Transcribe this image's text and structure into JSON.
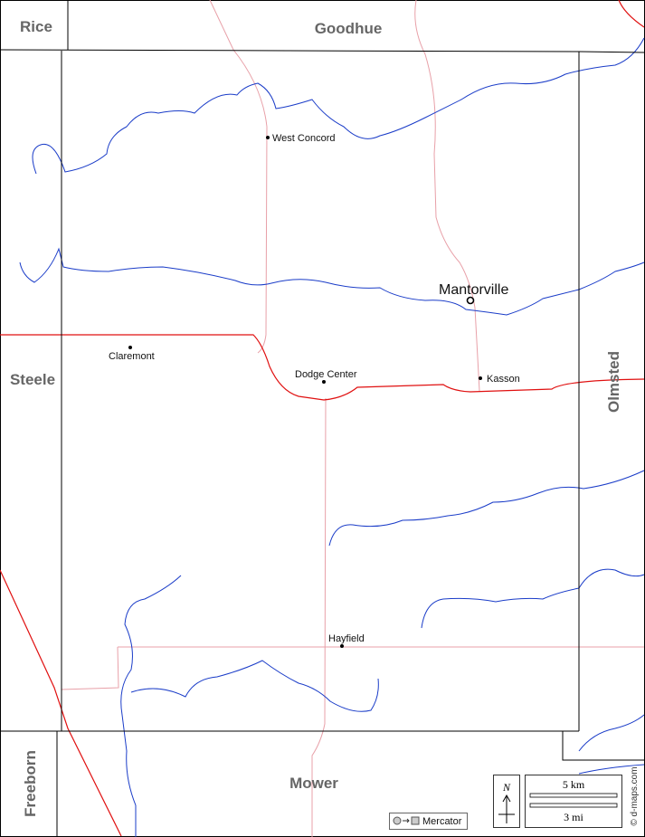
{
  "neighbors": {
    "north_west": "Rice",
    "north": "Goodhue",
    "west": "Steele",
    "east": "Olmsted",
    "south_west": "Freeborn",
    "south": "Mower"
  },
  "seat": "Mantorville",
  "towns": [
    "West Concord",
    "Claremont",
    "Dodge Center",
    "Kasson",
    "Hayfield"
  ],
  "legend": {
    "north": "N",
    "scale_km": "5 km",
    "scale_mi": "3 mi",
    "projection": "Mercator",
    "credit": "© d-maps.com"
  }
}
